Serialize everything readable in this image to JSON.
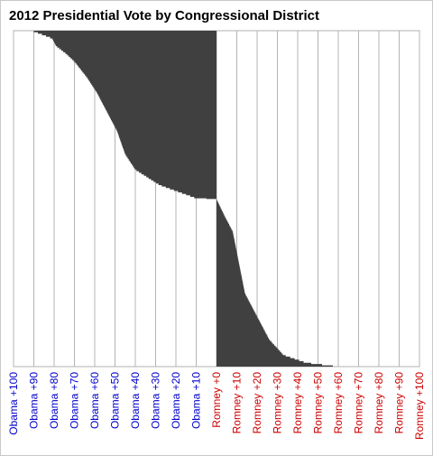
{
  "chart_data": {
    "type": "area",
    "title": "2012 Presidential Vote by Congressional District",
    "xlabel": "",
    "ylabel": "",
    "orientation": "horizontal",
    "x_range": [
      -100,
      100
    ],
    "grid": true,
    "legend": "none",
    "fill_color": "#404040",
    "tick_labels": [
      {
        "value": -100,
        "label": "Obama +100",
        "color": "#0000cc"
      },
      {
        "value": -90,
        "label": "Obama +90",
        "color": "#0000cc"
      },
      {
        "value": -80,
        "label": "Obama +80",
        "color": "#0000cc"
      },
      {
        "value": -70,
        "label": "Obama +70",
        "color": "#0000cc"
      },
      {
        "value": -60,
        "label": "Obama +60",
        "color": "#0000cc"
      },
      {
        "value": -50,
        "label": "Obama +50",
        "color": "#0000cc"
      },
      {
        "value": -40,
        "label": "Obama +40",
        "color": "#0000cc"
      },
      {
        "value": -30,
        "label": "Obama +30",
        "color": "#0000cc"
      },
      {
        "value": -20,
        "label": "Obama +20",
        "color": "#0000cc"
      },
      {
        "value": -10,
        "label": "Obama +10",
        "color": "#0000cc"
      },
      {
        "value": 0,
        "label": "Romney +0",
        "color": "#cc0000"
      },
      {
        "value": 10,
        "label": "Romney +10",
        "color": "#cc0000"
      },
      {
        "value": 20,
        "label": "Romney +20",
        "color": "#cc0000"
      },
      {
        "value": 30,
        "label": "Romney +30",
        "color": "#cc0000"
      },
      {
        "value": 40,
        "label": "Romney +40",
        "color": "#cc0000"
      },
      {
        "value": 50,
        "label": "Romney +50",
        "color": "#cc0000"
      },
      {
        "value": 60,
        "label": "Romney +60",
        "color": "#cc0000"
      },
      {
        "value": 70,
        "label": "Romney +70",
        "color": "#cc0000"
      },
      {
        "value": 80,
        "label": "Romney +80",
        "color": "#cc0000"
      },
      {
        "value": 90,
        "label": "Romney +90",
        "color": "#cc0000"
      },
      {
        "value": 100,
        "label": "Romney +100",
        "color": "#cc0000"
      }
    ],
    "district_rank": [
      0,
      10,
      20,
      30,
      40,
      60,
      80,
      100,
      130,
      160,
      180,
      200,
      217,
      218,
      240,
      260,
      300,
      340,
      360,
      380,
      400,
      420,
      430,
      435
    ],
    "margin": [
      -91,
      -81,
      -79,
      -74,
      -70,
      -64,
      -59,
      -55,
      -49,
      -45,
      -40,
      -28,
      -10,
      0,
      4,
      8,
      11,
      14,
      18,
      22,
      26,
      33,
      44,
      60
    ]
  }
}
